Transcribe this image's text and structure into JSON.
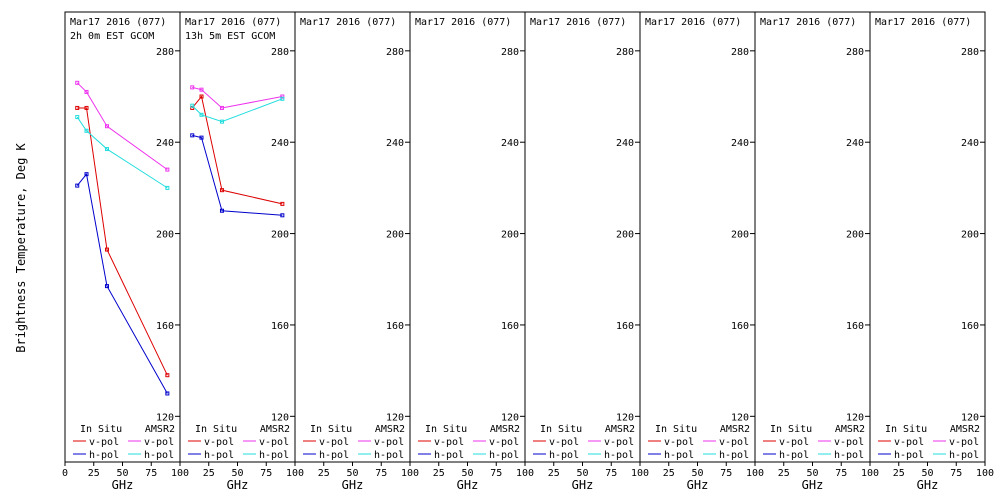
{
  "figure": {
    "ylabel": "Brightness Temperature, Deg K",
    "xlabel": "GHz"
  },
  "legend": {
    "insitu_label": "In Situ",
    "amsr2_label": "AMSR2",
    "vpol_label": "v-pol",
    "hpol_label": "h-pol"
  },
  "colors": {
    "insitu_v": "#dd0000",
    "insitu_h": "#0000cc",
    "amsr2_v": "#ee33ee",
    "amsr2_h": "#22dddd"
  },
  "chart_data": [
    {
      "type": "line",
      "title": "Mar17 2016 (077)",
      "subtitle": "2h 0m EST GCOM",
      "xlabel": "GHz",
      "ylabel": "Brightness Temperature, Deg K",
      "xlim": [
        0,
        100
      ],
      "ylim": [
        100,
        297
      ],
      "xticks": [
        0,
        25,
        50,
        75,
        100
      ],
      "yticks": [
        120,
        160,
        200,
        240,
        280
      ],
      "x": [
        10.65,
        18.7,
        36.5,
        89.0
      ],
      "series": [
        {
          "name": "In Situ v-pol",
          "values": [
            255,
            255,
            193,
            138
          ],
          "color": "#dd0000"
        },
        {
          "name": "In Situ h-pol",
          "values": [
            221,
            226,
            177,
            130
          ],
          "color": "#0000cc"
        },
        {
          "name": "AMSR2 v-pol",
          "values": [
            266,
            262,
            247,
            228
          ],
          "color": "#ee33ee"
        },
        {
          "name": "AMSR2 h-pol",
          "values": [
            251,
            245,
            237,
            220
          ],
          "color": "#22dddd"
        }
      ]
    },
    {
      "type": "line",
      "title": "Mar17 2016 (077)",
      "subtitle": "13h 5m EST GCOM",
      "xlabel": "GHz",
      "ylabel": "",
      "xlim": [
        0,
        100
      ],
      "ylim": [
        100,
        297
      ],
      "xticks": [
        0,
        25,
        50,
        75,
        100
      ],
      "yticks": [
        120,
        160,
        200,
        240,
        280
      ],
      "x": [
        10.65,
        18.7,
        36.5,
        89.0
      ],
      "series": [
        {
          "name": "In Situ v-pol",
          "values": [
            255,
            260,
            219,
            213
          ],
          "color": "#dd0000"
        },
        {
          "name": "In Situ h-pol",
          "values": [
            243,
            242,
            210,
            208
          ],
          "color": "#0000cc"
        },
        {
          "name": "AMSR2 v-pol",
          "values": [
            264,
            263,
            255,
            260
          ],
          "color": "#ee33ee"
        },
        {
          "name": "AMSR2 h-pol",
          "values": [
            256,
            252,
            249,
            259
          ],
          "color": "#22dddd"
        }
      ]
    },
    {
      "type": "line",
      "title": "Mar17 2016 (077)",
      "subtitle": "",
      "xlabel": "GHz",
      "xlim": [
        0,
        100
      ],
      "ylim": [
        100,
        297
      ],
      "xticks": [
        0,
        25,
        50,
        75,
        100
      ],
      "yticks": [
        120,
        160,
        200,
        240,
        280
      ],
      "x": [],
      "series": []
    },
    {
      "type": "line",
      "title": "Mar17 2016 (077)",
      "subtitle": "",
      "xlabel": "GHz",
      "xlim": [
        0,
        100
      ],
      "ylim": [
        100,
        297
      ],
      "xticks": [
        0,
        25,
        50,
        75,
        100
      ],
      "yticks": [
        120,
        160,
        200,
        240,
        280
      ],
      "x": [],
      "series": []
    },
    {
      "type": "line",
      "title": "Mar17 2016 (077)",
      "subtitle": "",
      "xlabel": "GHz",
      "xlim": [
        0,
        100
      ],
      "ylim": [
        100,
        297
      ],
      "xticks": [
        0,
        25,
        50,
        75,
        100
      ],
      "yticks": [
        120,
        160,
        200,
        240,
        280
      ],
      "x": [],
      "series": []
    },
    {
      "type": "line",
      "title": "Mar17 2016 (077)",
      "subtitle": "",
      "xlabel": "GHz",
      "xlim": [
        0,
        100
      ],
      "ylim": [
        100,
        297
      ],
      "xticks": [
        0,
        25,
        50,
        75,
        100
      ],
      "yticks": [
        120,
        160,
        200,
        240,
        280
      ],
      "x": [],
      "series": []
    },
    {
      "type": "line",
      "title": "Mar17 2016 (077)",
      "subtitle": "",
      "xlabel": "GHz",
      "xlim": [
        0,
        100
      ],
      "ylim": [
        100,
        297
      ],
      "xticks": [
        0,
        25,
        50,
        75,
        100
      ],
      "yticks": [
        120,
        160,
        200,
        240,
        280
      ],
      "x": [],
      "series": []
    },
    {
      "type": "line",
      "title": "Mar17 2016 (077)",
      "subtitle": "",
      "xlabel": "GHz",
      "xlim": [
        0,
        100
      ],
      "ylim": [
        100,
        297
      ],
      "xticks": [
        0,
        25,
        50,
        75,
        100
      ],
      "yticks": [
        120,
        160,
        200,
        240,
        280
      ],
      "x": [],
      "series": []
    }
  ]
}
